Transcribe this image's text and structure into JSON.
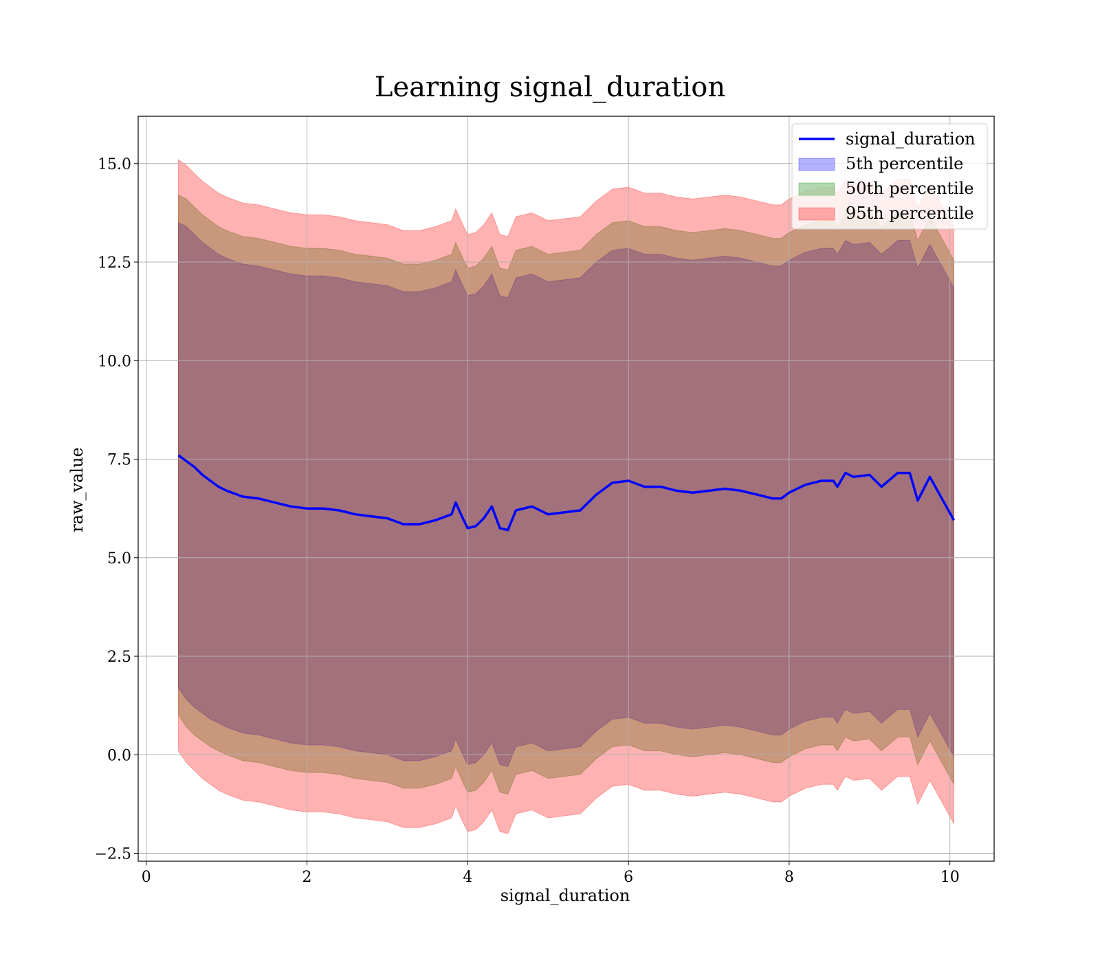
{
  "chart_data": {
    "type": "area",
    "title": "Learning signal_duration",
    "xlabel": "signal_duration",
    "ylabel": "raw_value",
    "xlim": [
      -0.1,
      10.55
    ],
    "ylim": [
      -2.7,
      16.2
    ],
    "xticks": [
      0,
      2,
      4,
      6,
      8,
      10
    ],
    "yticks": [
      -2.5,
      0.0,
      2.5,
      5.0,
      7.5,
      10.0,
      12.5,
      15.0
    ],
    "ytick_labels": [
      "−2.5",
      "0.0",
      "2.5",
      "5.0",
      "7.5",
      "10.0",
      "12.5",
      "15.0"
    ],
    "grid": true,
    "legend_position": "top-right",
    "x": [
      0.4,
      0.5,
      0.6,
      0.7,
      0.8,
      0.9,
      1.0,
      1.2,
      1.4,
      1.6,
      1.8,
      2.0,
      2.2,
      2.4,
      2.6,
      2.8,
      3.0,
      3.2,
      3.4,
      3.6,
      3.8,
      3.85,
      3.95,
      4.0,
      4.1,
      4.2,
      4.3,
      4.4,
      4.5,
      4.6,
      4.8,
      5.0,
      5.2,
      5.4,
      5.6,
      5.8,
      6.0,
      6.2,
      6.4,
      6.6,
      6.8,
      7.0,
      7.2,
      7.4,
      7.6,
      7.8,
      7.9,
      8.0,
      8.2,
      8.4,
      8.55,
      8.6,
      8.7,
      8.8,
      9.0,
      9.15,
      9.35,
      9.5,
      9.6,
      9.75,
      10.05
    ],
    "series": [
      {
        "name": "signal_duration",
        "kind": "line",
        "color": "#0000ff",
        "values": [
          7.6,
          7.45,
          7.3,
          7.1,
          6.95,
          6.8,
          6.7,
          6.55,
          6.5,
          6.4,
          6.3,
          6.25,
          6.25,
          6.2,
          6.1,
          6.05,
          6.0,
          5.85,
          5.85,
          5.95,
          6.1,
          6.4,
          5.95,
          5.75,
          5.8,
          6.0,
          6.3,
          5.75,
          5.7,
          6.2,
          6.3,
          6.1,
          6.15,
          6.2,
          6.6,
          6.9,
          6.95,
          6.8,
          6.8,
          6.7,
          6.65,
          6.7,
          6.75,
          6.7,
          6.6,
          6.5,
          6.5,
          6.65,
          6.85,
          6.95,
          6.95,
          6.8,
          7.15,
          7.05,
          7.1,
          6.8,
          7.15,
          7.15,
          6.45,
          7.05,
          5.95
        ]
      },
      {
        "name": "5th percentile",
        "kind": "band",
        "color": "#0000ff",
        "lower": [
          1.7,
          1.4,
          1.2,
          1.05,
          0.9,
          0.8,
          0.7,
          0.55,
          0.5,
          0.4,
          0.3,
          0.25,
          0.25,
          0.2,
          0.1,
          0.05,
          0.0,
          -0.15,
          -0.15,
          -0.05,
          0.1,
          0.4,
          -0.05,
          -0.25,
          -0.2,
          0.0,
          0.3,
          -0.25,
          -0.3,
          0.2,
          0.3,
          0.1,
          0.15,
          0.2,
          0.6,
          0.9,
          0.95,
          0.8,
          0.8,
          0.7,
          0.65,
          0.7,
          0.75,
          0.7,
          0.6,
          0.5,
          0.5,
          0.65,
          0.85,
          0.95,
          0.95,
          0.8,
          1.15,
          1.05,
          1.1,
          0.8,
          1.15,
          1.15,
          0.45,
          1.05,
          -0.05
        ],
        "upper": [
          13.5,
          13.4,
          13.2,
          13.0,
          12.85,
          12.7,
          12.6,
          12.45,
          12.4,
          12.3,
          12.2,
          12.15,
          12.15,
          12.1,
          12.0,
          11.95,
          11.9,
          11.75,
          11.75,
          11.85,
          12.0,
          12.3,
          11.85,
          11.65,
          11.7,
          11.9,
          12.2,
          11.65,
          11.6,
          12.1,
          12.2,
          12.0,
          12.05,
          12.1,
          12.5,
          12.8,
          12.85,
          12.7,
          12.7,
          12.6,
          12.55,
          12.6,
          12.65,
          12.6,
          12.5,
          12.4,
          12.4,
          12.55,
          12.75,
          12.85,
          12.85,
          12.7,
          13.05,
          12.95,
          13.0,
          12.7,
          13.05,
          13.05,
          12.35,
          12.95,
          11.85
        ]
      },
      {
        "name": "50th percentile",
        "kind": "band",
        "color": "#008000",
        "lower": [
          1.0,
          0.7,
          0.5,
          0.35,
          0.2,
          0.1,
          0.0,
          -0.15,
          -0.2,
          -0.3,
          -0.4,
          -0.45,
          -0.45,
          -0.5,
          -0.6,
          -0.65,
          -0.7,
          -0.85,
          -0.85,
          -0.75,
          -0.6,
          -0.3,
          -0.75,
          -0.95,
          -0.9,
          -0.7,
          -0.4,
          -0.95,
          -1.0,
          -0.5,
          -0.4,
          -0.6,
          -0.55,
          -0.5,
          -0.1,
          0.2,
          0.25,
          0.1,
          0.1,
          0.0,
          -0.05,
          0.0,
          0.05,
          0.0,
          -0.1,
          -0.2,
          -0.2,
          -0.05,
          0.15,
          0.25,
          0.25,
          0.1,
          0.45,
          0.35,
          0.4,
          0.1,
          0.45,
          0.45,
          -0.25,
          0.35,
          -0.75
        ],
        "upper": [
          14.2,
          14.1,
          13.9,
          13.7,
          13.55,
          13.4,
          13.3,
          13.15,
          13.1,
          13.0,
          12.9,
          12.85,
          12.85,
          12.8,
          12.7,
          12.65,
          12.6,
          12.45,
          12.45,
          12.55,
          12.7,
          13.0,
          12.55,
          12.35,
          12.4,
          12.6,
          12.9,
          12.35,
          12.3,
          12.8,
          12.9,
          12.7,
          12.75,
          12.8,
          13.2,
          13.5,
          13.55,
          13.4,
          13.4,
          13.3,
          13.25,
          13.3,
          13.35,
          13.3,
          13.2,
          13.1,
          13.1,
          13.25,
          13.45,
          13.55,
          13.55,
          13.4,
          13.75,
          13.65,
          13.7,
          13.4,
          13.75,
          13.75,
          13.05,
          13.65,
          12.55
        ]
      },
      {
        "name": "95th percentile",
        "kind": "band",
        "color": "#ff0000",
        "lower": [
          0.1,
          -0.2,
          -0.4,
          -0.6,
          -0.75,
          -0.9,
          -1.0,
          -1.15,
          -1.2,
          -1.3,
          -1.4,
          -1.45,
          -1.45,
          -1.5,
          -1.6,
          -1.65,
          -1.7,
          -1.85,
          -1.85,
          -1.75,
          -1.6,
          -1.3,
          -1.75,
          -1.95,
          -1.9,
          -1.7,
          -1.4,
          -1.95,
          -2.0,
          -1.5,
          -1.4,
          -1.6,
          -1.55,
          -1.5,
          -1.1,
          -0.8,
          -0.75,
          -0.9,
          -0.9,
          -1.0,
          -1.05,
          -1.0,
          -0.95,
          -1.0,
          -1.1,
          -1.2,
          -1.2,
          -1.05,
          -0.85,
          -0.75,
          -0.75,
          -0.9,
          -0.55,
          -0.65,
          -0.6,
          -0.9,
          -0.55,
          -0.55,
          -1.25,
          -0.65,
          -1.75
        ],
        "upper": [
          15.1,
          14.95,
          14.75,
          14.55,
          14.4,
          14.25,
          14.15,
          14.0,
          13.95,
          13.85,
          13.75,
          13.7,
          13.7,
          13.65,
          13.55,
          13.5,
          13.45,
          13.3,
          13.3,
          13.4,
          13.55,
          13.85,
          13.4,
          13.2,
          13.25,
          13.45,
          13.75,
          13.2,
          13.15,
          13.65,
          13.75,
          13.55,
          13.6,
          13.65,
          14.05,
          14.35,
          14.4,
          14.25,
          14.25,
          14.15,
          14.1,
          14.15,
          14.2,
          14.15,
          14.05,
          13.95,
          13.95,
          14.1,
          14.3,
          14.4,
          14.4,
          14.25,
          14.6,
          14.5,
          14.55,
          14.25,
          14.6,
          14.6,
          13.9,
          14.5,
          13.4
        ]
      }
    ]
  }
}
